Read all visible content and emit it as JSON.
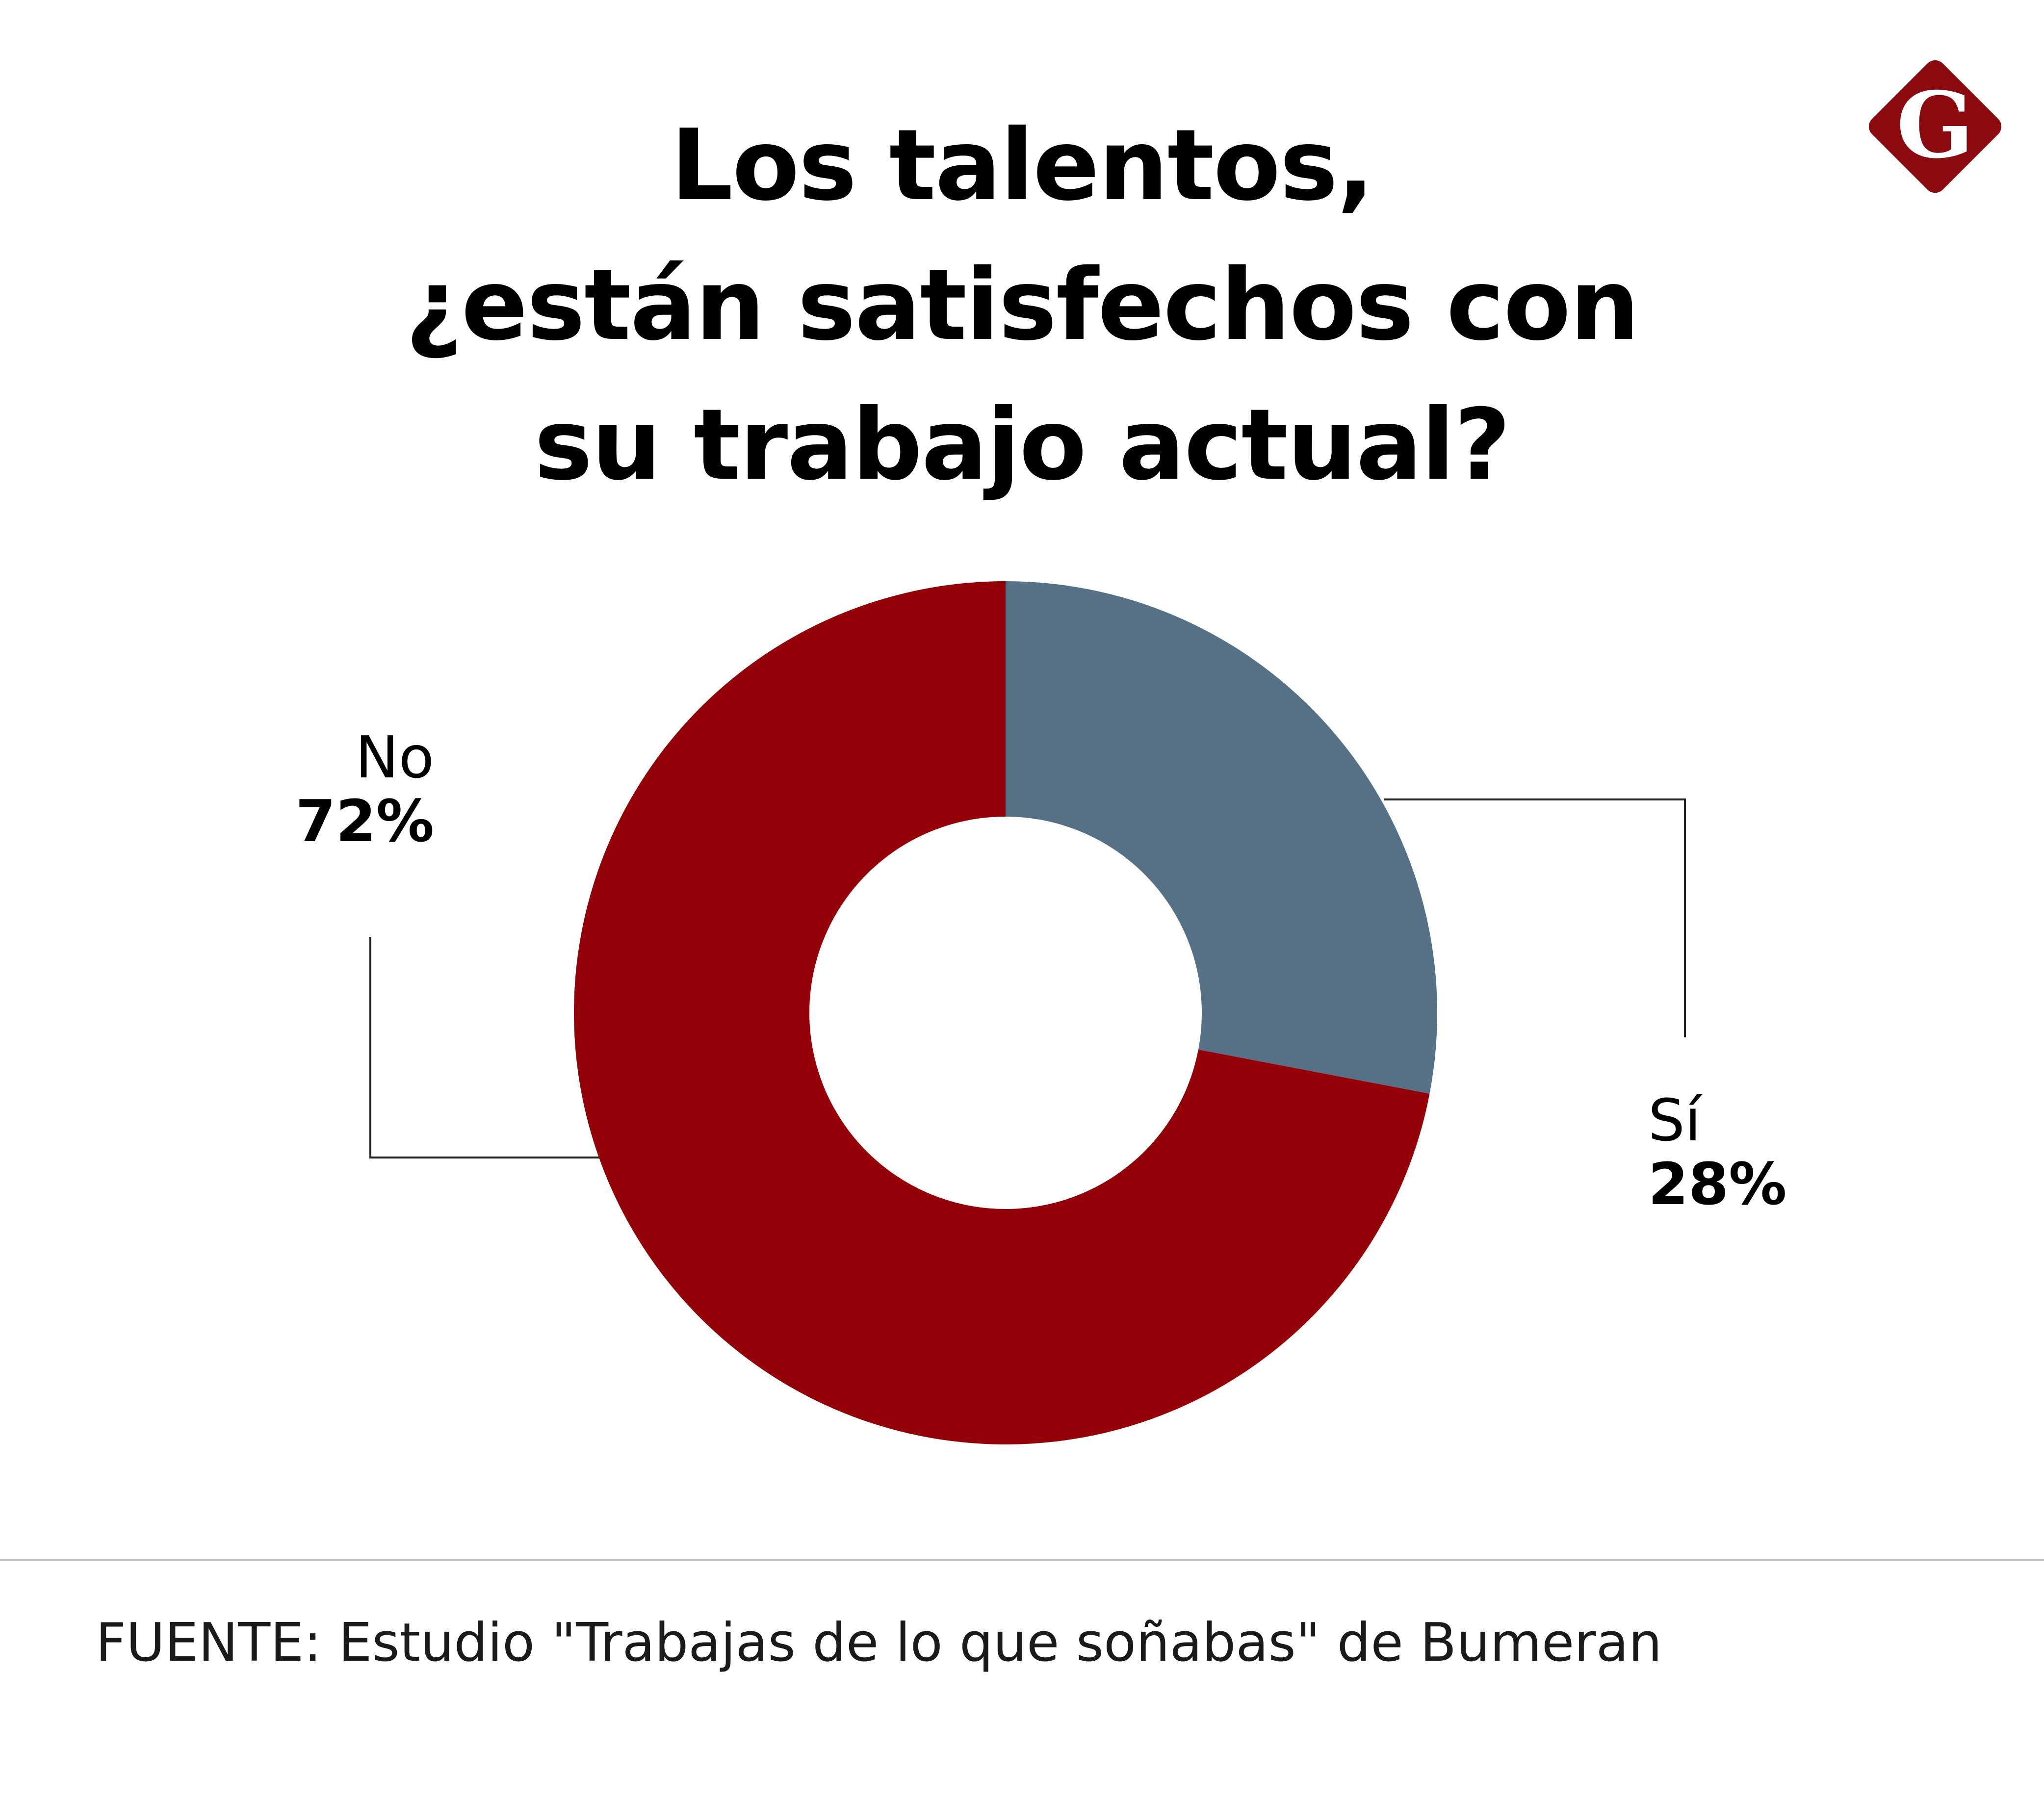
{
  "title_lines": [
    "Los talentos,",
    "¿están satisfechos con",
    "su trabajo actual?"
  ],
  "logo": {
    "letter": "G",
    "icon": "brand-diamond-logo",
    "color": "#8b0a10"
  },
  "chart_data": {
    "type": "pie",
    "variant": "donut",
    "categories": [
      "No",
      "Sí"
    ],
    "values": [
      72,
      28
    ],
    "value_labels": [
      "72%",
      "28%"
    ],
    "colors": [
      "#940008",
      "#567186"
    ],
    "start": "12 o'clock, clockwise from Sí"
  },
  "source": "FUENTE: Estudio \"Trabajas de lo que soñabas\" de Bumeran"
}
